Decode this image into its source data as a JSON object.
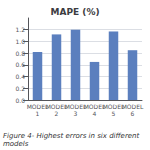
{
  "chart_data": {
    "type": "bar",
    "title": "MAPE (%)",
    "caption": "Figure 4- Highest errors in six different models",
    "categories": [
      "MODEL\n1",
      "MODEL\n2",
      "MODEL\n3",
      "MODEL\n4",
      "MODEL\n5",
      "MODEL\n6"
    ],
    "values": [
      0.82,
      1.12,
      1.2,
      0.65,
      1.17,
      0.85
    ],
    "color": "#5b7fbe",
    "ylim": [
      0,
      1.4
    ],
    "yticks": [
      {
        "value": 0,
        "label": "0.0"
      },
      0.2,
      0.4,
      0.6,
      0.8,
      {
        "value": 1.0,
        "label": "1.0"
      },
      1.2
    ],
    "grid": true
  }
}
